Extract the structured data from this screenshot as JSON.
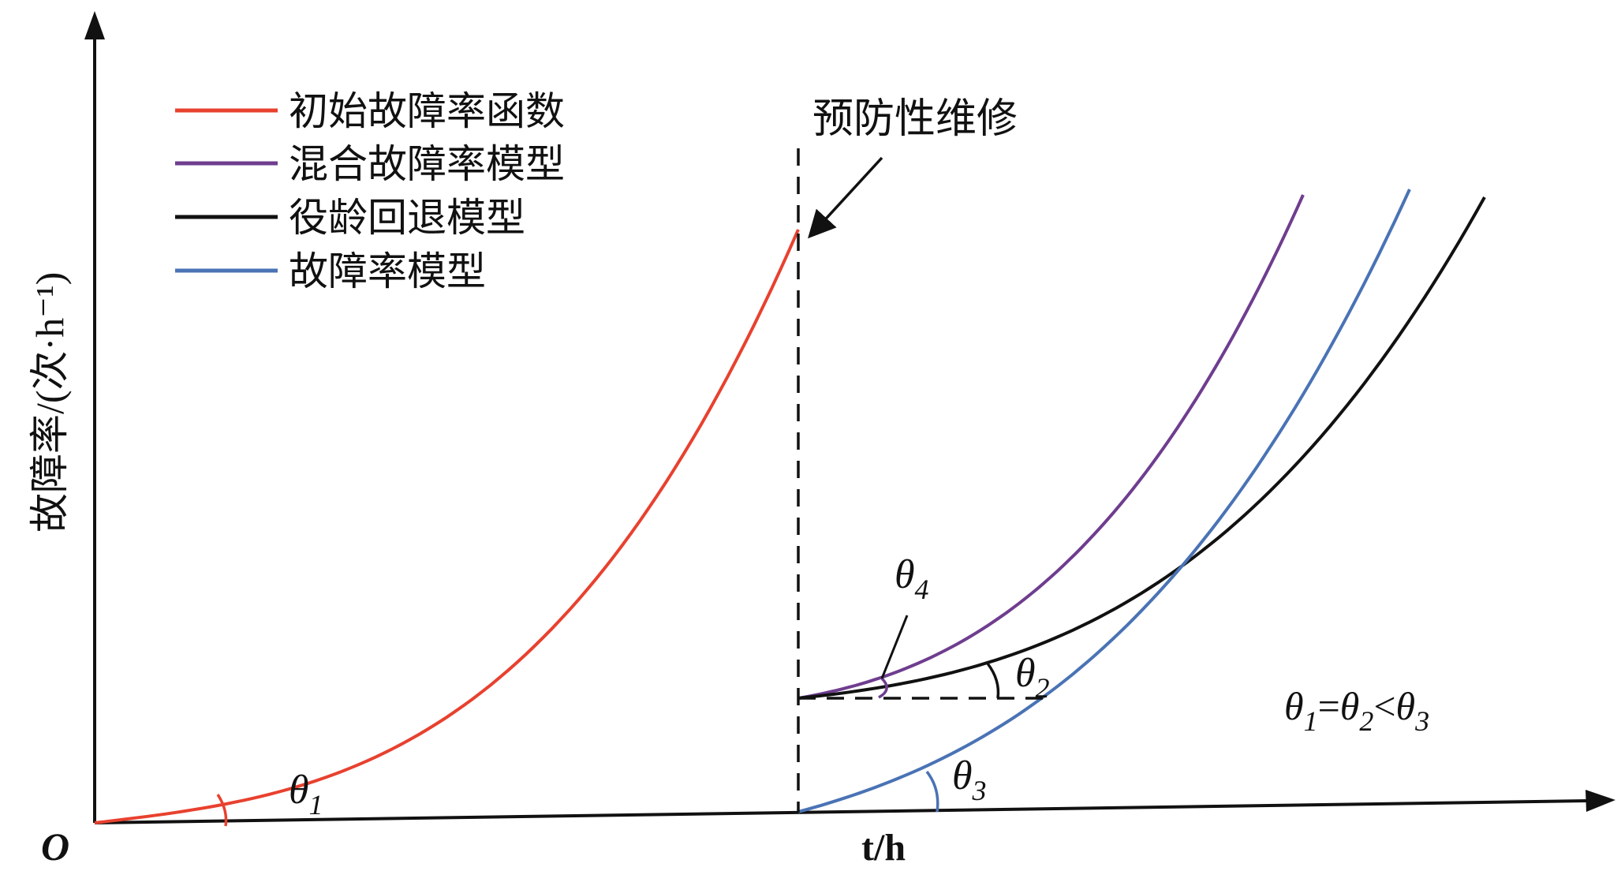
{
  "chart_data": {
    "type": "line",
    "title": "",
    "xlabel": "t/h",
    "ylabel": "故障率/(次·h⁻¹)",
    "origin_label": "O",
    "x_ticks": [],
    "y_ticks": [],
    "grid": false,
    "legend_position": "top-left",
    "series": [
      {
        "name": "初始故障率函数",
        "color": "#e8412f"
      },
      {
        "name": "混合故障率模型",
        "color": "#6f3d8f"
      },
      {
        "name": "役龄回退模型",
        "color": "#111111"
      },
      {
        "name": "故障率模型",
        "color": "#4a73b5"
      }
    ],
    "annotations": {
      "maintenance_label": "预防性维修",
      "relation": "θ1=θ2<θ3",
      "angles": [
        "θ1",
        "θ2",
        "θ3",
        "θ4"
      ]
    }
  },
  "colors": {
    "red": "#e8412f",
    "purple": "#6f3d8f",
    "black": "#111111",
    "blue": "#4a73b5"
  }
}
